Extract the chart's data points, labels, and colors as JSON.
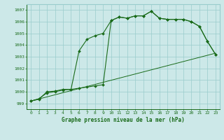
{
  "title": "Graphe pression niveau de la mer (hPa)",
  "bg_color": "#cce8e8",
  "grid_color": "#99cccc",
  "line_color": "#1a6b1a",
  "xlim": [
    -0.5,
    23.5
  ],
  "ylim": [
    998.5,
    1007.5
  ],
  "yticks": [
    999,
    1000,
    1001,
    1002,
    1003,
    1004,
    1005,
    1006,
    1007
  ],
  "xticks": [
    0,
    1,
    2,
    3,
    4,
    5,
    6,
    7,
    8,
    9,
    10,
    11,
    12,
    13,
    14,
    15,
    16,
    17,
    18,
    19,
    20,
    21,
    22,
    23
  ],
  "s1x": [
    0,
    23
  ],
  "s1y": [
    999.2,
    1003.3
  ],
  "s2x": [
    0,
    1,
    2,
    3,
    4,
    5,
    6,
    7,
    8,
    9,
    10,
    11,
    12,
    13,
    14,
    15,
    16,
    17,
    18,
    19,
    20,
    21,
    22,
    23
  ],
  "s2y": [
    999.2,
    999.4,
    999.9,
    1000.0,
    1000.15,
    1000.2,
    1000.3,
    1000.4,
    1000.5,
    1000.6,
    1006.1,
    1006.4,
    1006.3,
    1006.5,
    1006.5,
    1006.9,
    1006.3,
    1006.2,
    1006.2,
    1006.2,
    1006.0,
    1005.6,
    1004.3,
    1003.2
  ],
  "s3x": [
    0,
    1,
    2,
    3,
    4,
    5,
    6,
    7,
    8,
    9,
    10,
    11,
    12,
    13,
    14,
    15,
    16,
    17,
    18,
    19,
    20,
    21,
    22,
    23
  ],
  "s3y": [
    999.2,
    999.35,
    1000.0,
    1000.05,
    1000.2,
    1000.2,
    1003.5,
    1004.5,
    1004.8,
    1005.0,
    1006.1,
    1006.4,
    1006.3,
    1006.5,
    1006.5,
    1006.9,
    1006.3,
    1006.2,
    1006.2,
    1006.2,
    1006.0,
    1005.6,
    1004.3,
    1003.2
  ]
}
